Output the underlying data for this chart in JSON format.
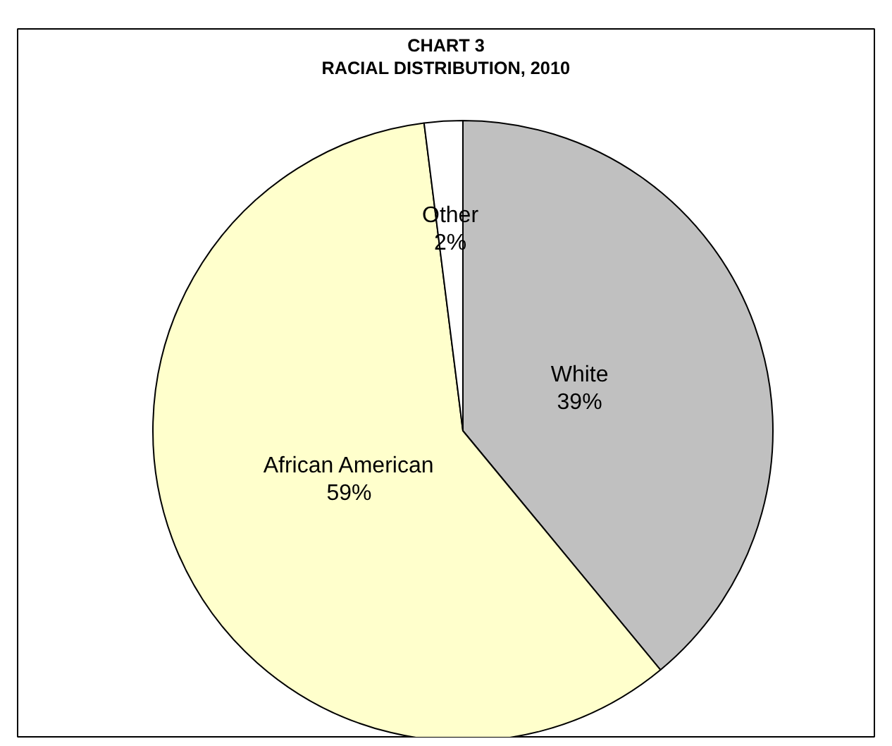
{
  "chart_data": {
    "type": "pie",
    "title": "CHART 3",
    "subtitle": "RACIAL DISTRIBUTION, 2010",
    "categories": [
      "White",
      "African American",
      "Other"
    ],
    "values": [
      39,
      59,
      2
    ],
    "colors": [
      "#c0c0c0",
      "#ffffcc",
      "#ffffff"
    ],
    "value_labels": [
      "39%",
      "59%",
      "2%"
    ]
  }
}
